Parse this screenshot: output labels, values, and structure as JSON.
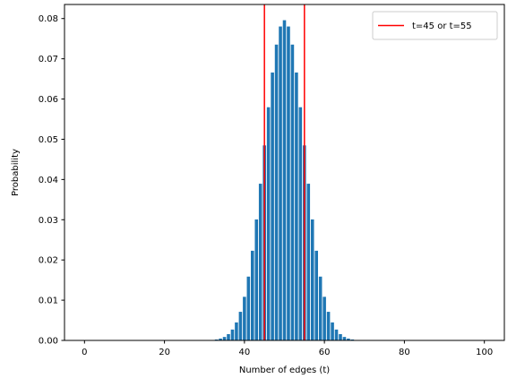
{
  "chart_data": {
    "type": "bar",
    "title": "",
    "xlabel": "Number of edges (t)",
    "ylabel": "Probability",
    "xlim": [
      -5,
      105
    ],
    "ylim": [
      0,
      0.0835
    ],
    "xticks": [
      0,
      20,
      40,
      60,
      80,
      100
    ],
    "yticks": [
      0.0,
      0.01,
      0.02,
      0.03,
      0.04,
      0.05,
      0.06,
      0.07,
      0.08
    ],
    "ytick_labels": [
      "0.00",
      "0.01",
      "0.02",
      "0.03",
      "0.04",
      "0.05",
      "0.06",
      "0.07",
      "0.08"
    ],
    "grid": false,
    "legend_position": "top-right",
    "bar_color": "#1f77b4",
    "x": [
      0,
      1,
      2,
      3,
      4,
      5,
      6,
      7,
      8,
      9,
      10,
      11,
      12,
      13,
      14,
      15,
      16,
      17,
      18,
      19,
      20,
      21,
      22,
      23,
      24,
      25,
      26,
      27,
      28,
      29,
      30,
      31,
      32,
      33,
      34,
      35,
      36,
      37,
      38,
      39,
      40,
      41,
      42,
      43,
      44,
      45,
      46,
      47,
      48,
      49,
      50,
      51,
      52,
      53,
      54,
      55,
      56,
      57,
      58,
      59,
      60,
      61,
      62,
      63,
      64,
      65,
      66,
      67,
      68,
      69,
      70,
      71,
      72,
      73,
      74,
      75,
      76,
      77,
      78,
      79,
      80,
      81,
      82,
      83,
      84,
      85,
      86,
      87,
      88,
      89,
      90,
      91,
      92,
      93,
      94,
      95,
      96,
      97,
      98,
      99,
      100
    ],
    "values": [
      0,
      0,
      0,
      0,
      0,
      0,
      0,
      0,
      0,
      0,
      0,
      0,
      0,
      0,
      0,
      0,
      0,
      0,
      0,
      0,
      0,
      0,
      0,
      0,
      0,
      0,
      0,
      0,
      0,
      0,
      2e-05,
      5e-05,
      0.00011,
      0.00023,
      0.00046,
      0.00086,
      0.00156,
      0.0027,
      0.00447,
      0.00711,
      0.01084,
      0.01586,
      0.02229,
      0.03007,
      0.03895,
      0.04847,
      0.05796,
      0.06659,
      0.07353,
      0.07803,
      0.07959,
      0.07803,
      0.07353,
      0.06659,
      0.05796,
      0.04847,
      0.03895,
      0.03007,
      0.02229,
      0.01586,
      0.01084,
      0.00711,
      0.00447,
      0.0027,
      0.00156,
      0.00086,
      0.00046,
      0.00023,
      0.00011,
      5e-05,
      2e-05,
      0,
      0,
      0,
      0,
      0,
      0,
      0,
      0,
      0,
      0,
      0,
      0,
      0,
      0,
      0,
      0,
      0,
      0,
      0,
      0,
      0,
      0,
      0,
      0,
      0,
      0,
      0,
      0,
      0,
      0
    ],
    "vlines": [
      45,
      55
    ],
    "vline_color": "#ff0000",
    "legend": [
      {
        "label": "t=45 or t=55",
        "color": "#ff0000"
      }
    ]
  }
}
